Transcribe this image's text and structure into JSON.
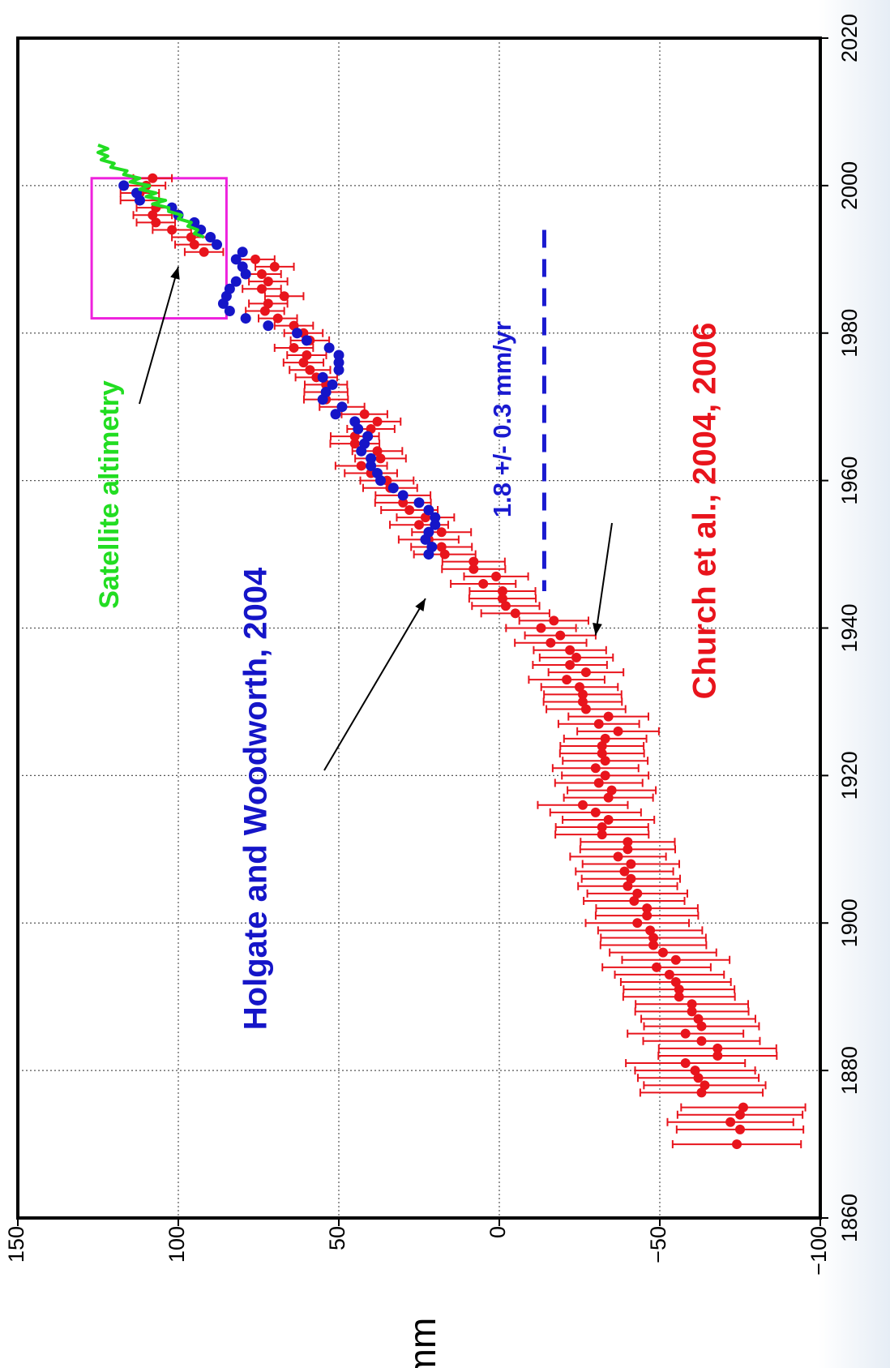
{
  "chart_data": {
    "type": "scatter",
    "orientation": "rotated-90-ccw",
    "title": "",
    "xlabel": "",
    "ylabel": "mm",
    "xlim": [
      1860,
      2020
    ],
    "ylim": [
      -100,
      150
    ],
    "xticks": [
      "1860",
      "1880",
      "1900",
      "1920",
      "1940",
      "1960",
      "1980",
      "2000",
      "2020"
    ],
    "yticks": [
      "−100",
      "−50",
      "0",
      "50",
      "100",
      "150"
    ],
    "grid": true,
    "colors": {
      "church": "#e8141c",
      "holgate": "#1515c8",
      "satellite": "#22dd22",
      "trend": "#1a1ad0",
      "box": "#ee22dd"
    },
    "series": [
      {
        "name": "Church et al., 2004, 2006",
        "style": "points-with-errorbars",
        "color": "#e8141c",
        "x": [
          1870,
          1872,
          1873,
          1874,
          1875,
          1877,
          1878,
          1879,
          1880,
          1881,
          1882,
          1883,
          1884,
          1885,
          1886,
          1887,
          1888,
          1889,
          1890,
          1891,
          1892,
          1893,
          1894,
          1895,
          1896,
          1897,
          1898,
          1899,
          1900,
          1901,
          1902,
          1903,
          1904,
          1905,
          1906,
          1907,
          1908,
          1909,
          1910,
          1911,
          1912,
          1913,
          1914,
          1915,
          1916,
          1917,
          1918,
          1919,
          1920,
          1921,
          1922,
          1923,
          1924,
          1925,
          1926,
          1927,
          1928,
          1929,
          1930,
          1931,
          1932,
          1933,
          1934,
          1935,
          1936,
          1937,
          1938,
          1939,
          1940,
          1941,
          1942,
          1943,
          1944,
          1945,
          1946,
          1947,
          1948,
          1949,
          1950,
          1951,
          1952,
          1953,
          1954,
          1955,
          1956,
          1957,
          1958,
          1959,
          1960,
          1961,
          1962,
          1963,
          1964,
          1965,
          1966,
          1967,
          1968,
          1969,
          1970,
          1971,
          1972,
          1973,
          1974,
          1975,
          1976,
          1977,
          1978,
          1979,
          1980,
          1981,
          1982,
          1983,
          1984,
          1985,
          1986,
          1987,
          1988,
          1989,
          1990,
          1991,
          1992,
          1993,
          1994,
          1995,
          1996,
          1997,
          1998,
          1999,
          2000,
          2001
        ],
        "y": [
          -74,
          -75,
          -72,
          -75,
          -76,
          -63,
          -64,
          -62,
          -61,
          -58,
          -68,
          -68,
          -63,
          -58,
          -63,
          -62,
          -60,
          -60,
          -56,
          -56,
          -55,
          -53,
          -49,
          -55,
          -51,
          -48,
          -48,
          -47,
          -43,
          -46,
          -46,
          -42,
          -43,
          -40,
          -41,
          -39,
          -41,
          -37,
          -40,
          -40,
          -32,
          -32,
          -34,
          -30,
          -26,
          -34,
          -35,
          -31,
          -33,
          -30,
          -33,
          -32,
          -32,
          -33,
          -37,
          -31,
          -34,
          -27,
          -26,
          -26,
          -25,
          -21,
          -27,
          -22,
          -24,
          -22,
          -16,
          -19,
          -13,
          -17,
          -5,
          -2,
          -1,
          -1,
          5,
          1,
          8,
          8,
          17,
          18,
          22,
          18,
          25,
          23,
          28,
          30,
          30,
          34,
          35,
          40,
          43,
          37,
          38,
          45,
          45,
          40,
          38,
          42,
          49,
          54,
          54,
          54,
          57,
          59,
          61,
          60,
          64,
          59,
          61,
          64,
          69,
          73,
          72,
          67,
          74,
          72,
          74,
          70,
          76,
          92,
          95,
          96,
          102,
          107,
          108,
          107,
          112,
          112,
          110,
          108
        ]
      },
      {
        "name": "Holgate and Woodworth, 2004",
        "style": "points",
        "color": "#1515c8",
        "x": [
          1950,
          1951,
          1952,
          1953,
          1954,
          1955,
          1956,
          1957,
          1958,
          1959,
          1960,
          1961,
          1962,
          1963,
          1964,
          1965,
          1966,
          1967,
          1968,
          1969,
          1970,
          1971,
          1972,
          1973,
          1974,
          1975,
          1976,
          1977,
          1978,
          1979,
          1980,
          1981,
          1982,
          1983,
          1984,
          1985,
          1986,
          1987,
          1988,
          1989,
          1990,
          1991,
          1992,
          1993,
          1994,
          1995,
          1996,
          1997,
          1998,
          1999,
          2000
        ],
        "y": [
          22,
          21,
          23,
          22,
          20,
          20,
          22,
          25,
          30,
          33,
          37,
          38,
          40,
          40,
          43,
          42,
          41,
          44,
          45,
          51,
          49,
          55,
          54,
          52,
          55,
          50,
          50,
          50,
          53,
          60,
          63,
          72,
          79,
          84,
          86,
          85,
          84,
          82,
          79,
          80,
          82,
          80,
          88,
          90,
          93,
          95,
          100,
          102,
          112,
          113,
          117
        ]
      },
      {
        "name": "Satellite altimetry",
        "style": "line",
        "color": "#22dd22",
        "x": [
          1993,
          1993.5,
          1994,
          1994.5,
          1995,
          1995.5,
          1996,
          1996.5,
          1997,
          1997.5,
          1998,
          1998.5,
          1999,
          1999.5,
          2000,
          2000.5,
          2001,
          2001.5,
          2002,
          2002.5,
          2003,
          2003.5,
          2004,
          2004.5,
          2005,
          2005.5
        ],
        "y": [
          92,
          95,
          94,
          97,
          96,
          100,
          99,
          103,
          103,
          108,
          104,
          110,
          107,
          112,
          109,
          115,
          112,
          117,
          116,
          121,
          120,
          124,
          122,
          125,
          122,
          125
        ]
      }
    ],
    "trend_line": {
      "label": "1.8 +/- 0.3 mm/yr",
      "x_range": [
        1945,
        1994
      ],
      "y": -14,
      "style": "dashed"
    },
    "highlight_box": {
      "x_range": [
        1982,
        2001
      ],
      "y_range": [
        85,
        127
      ]
    },
    "annotations": [
      {
        "text": "Satellite altimetry",
        "arrow_to": {
          "x": 1989,
          "y": 100
        }
      },
      {
        "text": "Holgate and Woodworth, 2004",
        "arrow_to": {
          "x": 1944,
          "y": 23
        }
      },
      {
        "text": "Church et al., 2004, 2006",
        "arrow_to": {
          "x": 1939,
          "y": -30
        }
      }
    ]
  }
}
